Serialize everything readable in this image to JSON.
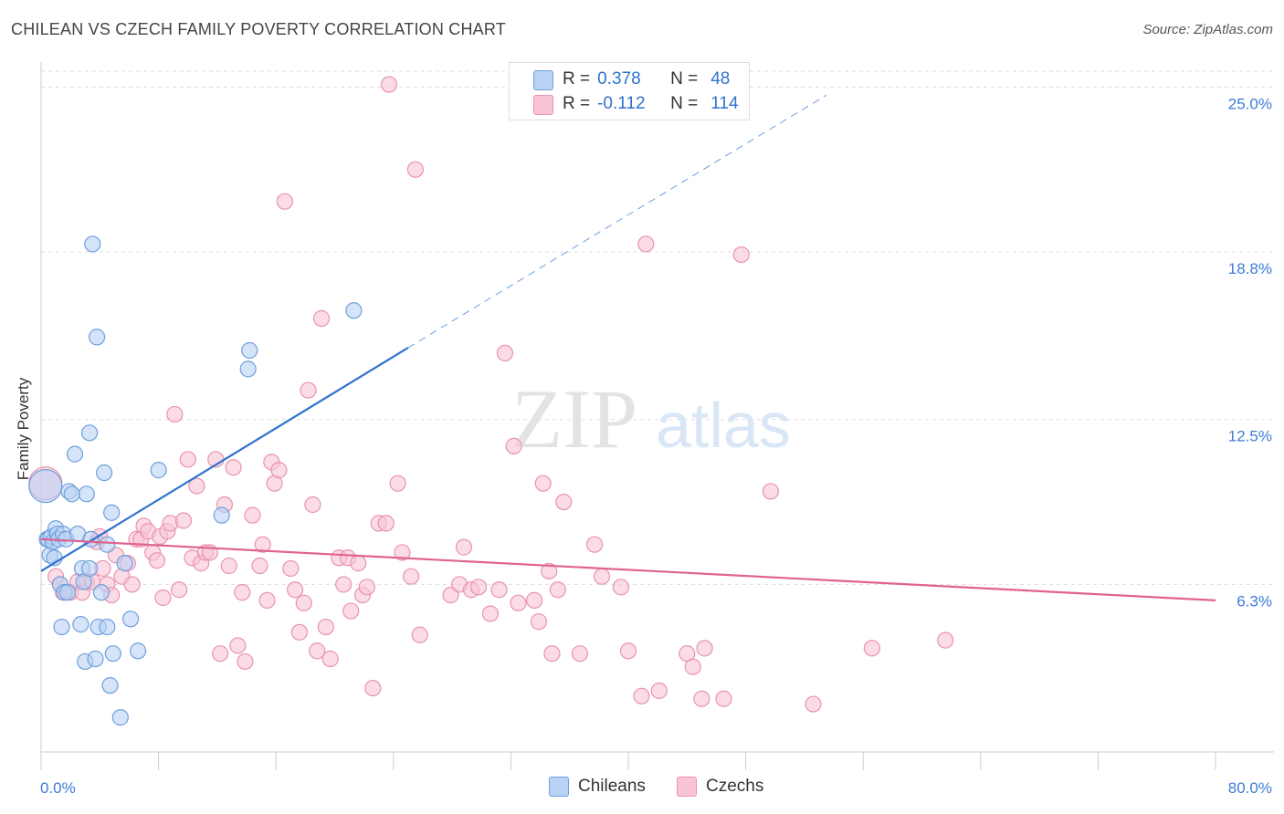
{
  "title": "CHILEAN VS CZECH FAMILY POVERTY CORRELATION CHART",
  "source": "Source: ZipAtlas.com",
  "watermark": {
    "zip": "ZIP",
    "atlas": "atlas"
  },
  "colors": {
    "chileans_fill": "#b9d2f3",
    "chileans_stroke": "#6f9fdc",
    "chileans_line": "#2f73cf",
    "czechs_fill": "#f8c4d6",
    "czechs_stroke": "#e992b0",
    "czechs_line": "#e0638f",
    "tick_label": "#3d7bd6",
    "grid": "#dddddd"
  },
  "legend": {
    "entries": [
      {
        "r_label": "R =",
        "r_value": "0.378",
        "n_label": "N =",
        "n_value": "48"
      },
      {
        "r_label": "R =",
        "r_value": "-0.112",
        "n_label": "N =",
        "n_value": "114"
      }
    ]
  },
  "bottom_legend": {
    "chileans": "Chileans",
    "czechs": "Czechs"
  },
  "chart_data": {
    "type": "scatter",
    "title": "CHILEAN VS CZECH FAMILY POVERTY CORRELATION CHART",
    "xlabel": "",
    "ylabel": "Family Poverty",
    "xlim": [
      0,
      80
    ],
    "ylim": [
      0,
      25.6
    ],
    "x_tick_labels": [
      "0.0%",
      "80.0%"
    ],
    "y_ticks": [
      6.3,
      12.5,
      18.8,
      25.0
    ],
    "y_tick_labels": [
      "6.3%",
      "12.5%",
      "18.8%",
      "25.0%"
    ],
    "grid": "horizontal dashed",
    "legend_position": "top-center",
    "series": [
      {
        "name": "Chileans",
        "r": 0.378,
        "n": 48,
        "trend": {
          "x0": 0,
          "y0": 6.8,
          "x1": 25,
          "y1": 15.2,
          "dashed_to_x": 53.5,
          "dashed_to_y": 24.7
        },
        "points": [
          [
            0.3,
            10.0
          ],
          [
            0.4,
            8.0
          ],
          [
            0.5,
            8.0
          ],
          [
            0.6,
            7.4
          ],
          [
            0.7,
            8.1
          ],
          [
            0.8,
            7.9
          ],
          [
            0.9,
            7.3
          ],
          [
            1.0,
            8.4
          ],
          [
            1.1,
            8.2
          ],
          [
            1.2,
            8.0
          ],
          [
            1.3,
            6.3
          ],
          [
            1.4,
            4.7
          ],
          [
            1.5,
            8.2
          ],
          [
            1.6,
            6.0
          ],
          [
            1.7,
            8.0
          ],
          [
            1.8,
            6.0
          ],
          [
            1.9,
            9.8
          ],
          [
            2.1,
            9.7
          ],
          [
            2.3,
            11.2
          ],
          [
            2.5,
            8.2
          ],
          [
            2.7,
            4.8
          ],
          [
            2.8,
            6.9
          ],
          [
            2.9,
            6.4
          ],
          [
            3.0,
            3.4
          ],
          [
            3.1,
            9.7
          ],
          [
            3.3,
            6.9
          ],
          [
            3.3,
            12.0
          ],
          [
            3.4,
            8.0
          ],
          [
            3.5,
            19.1
          ],
          [
            3.7,
            3.5
          ],
          [
            3.8,
            15.6
          ],
          [
            3.9,
            4.7
          ],
          [
            4.1,
            6.0
          ],
          [
            4.3,
            10.5
          ],
          [
            4.5,
            7.8
          ],
          [
            4.5,
            4.7
          ],
          [
            4.7,
            2.5
          ],
          [
            4.8,
            9.0
          ],
          [
            4.9,
            3.7
          ],
          [
            5.4,
            1.3
          ],
          [
            5.7,
            7.1
          ],
          [
            6.1,
            5.0
          ],
          [
            6.6,
            3.8
          ],
          [
            8.0,
            10.6
          ],
          [
            12.3,
            8.9
          ],
          [
            14.1,
            14.4
          ],
          [
            14.2,
            15.1
          ],
          [
            21.3,
            16.6
          ]
        ]
      },
      {
        "name": "Czechs",
        "r": -0.112,
        "n": 114,
        "trend": {
          "x0": 0,
          "y0": 8.0,
          "x1": 80,
          "y1": 5.7
        },
        "points": [
          [
            0.3,
            10.1
          ],
          [
            1.0,
            6.6
          ],
          [
            1.3,
            6.3
          ],
          [
            1.5,
            6.0
          ],
          [
            2.0,
            6.0
          ],
          [
            2.5,
            6.4
          ],
          [
            2.8,
            6.0
          ],
          [
            3.1,
            6.4
          ],
          [
            3.5,
            6.4
          ],
          [
            3.8,
            7.9
          ],
          [
            4.0,
            8.1
          ],
          [
            4.2,
            6.9
          ],
          [
            4.5,
            6.3
          ],
          [
            4.8,
            5.9
          ],
          [
            5.1,
            7.4
          ],
          [
            5.5,
            6.6
          ],
          [
            5.9,
            7.1
          ],
          [
            6.2,
            6.3
          ],
          [
            6.5,
            8.0
          ],
          [
            6.8,
            8.0
          ],
          [
            7.0,
            8.5
          ],
          [
            7.3,
            8.3
          ],
          [
            7.6,
            7.5
          ],
          [
            7.9,
            7.2
          ],
          [
            8.1,
            8.1
          ],
          [
            8.3,
            5.8
          ],
          [
            8.6,
            8.3
          ],
          [
            8.8,
            8.6
          ],
          [
            9.1,
            12.7
          ],
          [
            9.4,
            6.1
          ],
          [
            9.7,
            8.7
          ],
          [
            10.0,
            11.0
          ],
          [
            10.3,
            7.3
          ],
          [
            10.6,
            10.0
          ],
          [
            10.9,
            7.1
          ],
          [
            11.2,
            7.5
          ],
          [
            11.5,
            7.5
          ],
          [
            11.9,
            11.0
          ],
          [
            12.2,
            3.7
          ],
          [
            12.5,
            9.3
          ],
          [
            12.8,
            7.0
          ],
          [
            13.1,
            10.7
          ],
          [
            13.4,
            4.0
          ],
          [
            13.7,
            6.0
          ],
          [
            13.9,
            3.4
          ],
          [
            14.4,
            8.9
          ],
          [
            14.9,
            7.0
          ],
          [
            15.1,
            7.8
          ],
          [
            15.4,
            5.7
          ],
          [
            15.7,
            10.9
          ],
          [
            15.9,
            10.1
          ],
          [
            16.2,
            10.6
          ],
          [
            16.6,
            20.7
          ],
          [
            17.0,
            6.9
          ],
          [
            17.3,
            6.1
          ],
          [
            17.6,
            4.5
          ],
          [
            17.9,
            5.6
          ],
          [
            18.2,
            13.6
          ],
          [
            18.5,
            9.3
          ],
          [
            18.8,
            3.8
          ],
          [
            19.1,
            16.3
          ],
          [
            19.4,
            4.7
          ],
          [
            19.7,
            3.5
          ],
          [
            20.3,
            7.3
          ],
          [
            20.6,
            6.3
          ],
          [
            20.9,
            7.3
          ],
          [
            21.1,
            5.3
          ],
          [
            21.6,
            7.1
          ],
          [
            21.9,
            5.9
          ],
          [
            22.2,
            6.2
          ],
          [
            22.6,
            2.4
          ],
          [
            23.0,
            8.6
          ],
          [
            23.5,
            8.6
          ],
          [
            23.7,
            25.1
          ],
          [
            24.3,
            10.1
          ],
          [
            24.6,
            7.5
          ],
          [
            25.2,
            6.6
          ],
          [
            25.5,
            21.9
          ],
          [
            25.8,
            4.4
          ],
          [
            27.9,
            5.9
          ],
          [
            28.5,
            6.3
          ],
          [
            28.8,
            7.7
          ],
          [
            29.3,
            6.1
          ],
          [
            29.8,
            6.2
          ],
          [
            30.6,
            5.2
          ],
          [
            31.2,
            6.1
          ],
          [
            31.6,
            15.0
          ],
          [
            32.2,
            11.5
          ],
          [
            32.5,
            5.6
          ],
          [
            33.6,
            5.7
          ],
          [
            33.9,
            4.9
          ],
          [
            34.2,
            10.1
          ],
          [
            34.6,
            6.8
          ],
          [
            34.8,
            3.7
          ],
          [
            35.2,
            6.1
          ],
          [
            35.6,
            9.4
          ],
          [
            36.7,
            3.7
          ],
          [
            37.7,
            7.8
          ],
          [
            38.2,
            6.6
          ],
          [
            39.5,
            6.2
          ],
          [
            40.0,
            3.8
          ],
          [
            40.9,
            2.1
          ],
          [
            41.2,
            19.1
          ],
          [
            42.1,
            2.3
          ],
          [
            44.0,
            3.7
          ],
          [
            44.4,
            3.2
          ],
          [
            45.0,
            2.0
          ],
          [
            45.2,
            3.9
          ],
          [
            46.5,
            2.0
          ],
          [
            47.7,
            18.7
          ],
          [
            49.7,
            9.8
          ],
          [
            52.6,
            1.8
          ],
          [
            56.6,
            3.9
          ],
          [
            61.6,
            4.2
          ]
        ]
      }
    ]
  }
}
